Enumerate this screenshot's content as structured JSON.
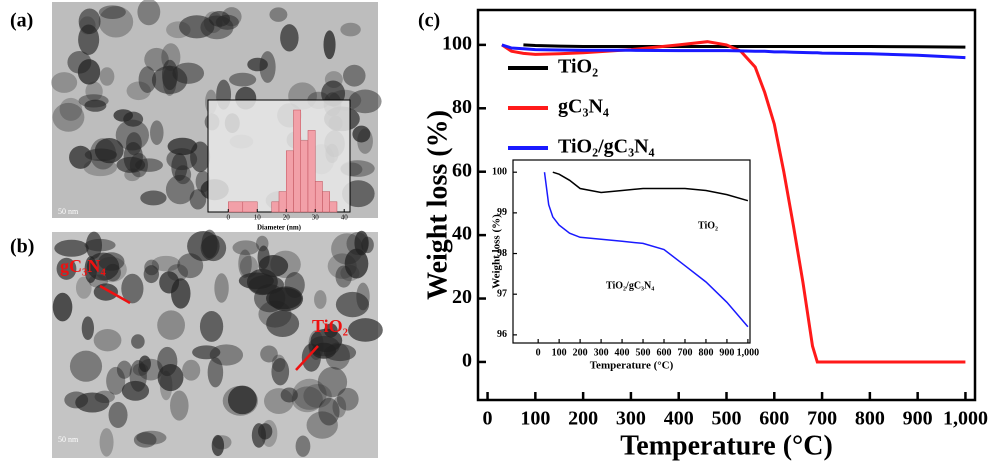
{
  "panels": {
    "a": {
      "label": "(a)",
      "scale_bar": "50 nm"
    },
    "b": {
      "label": "(b)",
      "annotations": [
        "gC₃N₄",
        "TiO₂"
      ],
      "scale_bar": "50 nm"
    },
    "c": {
      "label": "(c)"
    }
  },
  "chart_data": [
    {
      "type": "line",
      "xlabel": "Temperature (°C)",
      "ylabel": "Weight loss (%)",
      "xlim": [
        -20,
        1020
      ],
      "ylim": [
        -12,
        111
      ],
      "xticks": [
        0,
        100,
        200,
        300,
        400,
        500,
        600,
        700,
        800,
        900,
        {
          "value": 1000,
          "label": "1,000"
        }
      ],
      "yticks": [
        0,
        20,
        40,
        60,
        80,
        100
      ],
      "x": [
        30,
        50,
        75,
        100,
        150,
        200,
        300,
        400,
        460,
        500,
        530,
        560,
        580,
        600,
        620,
        640,
        660,
        680,
        690,
        700,
        800,
        900,
        1000
      ],
      "series": [
        {
          "name": "TiO₂",
          "color": "#000000",
          "values": [
            null,
            null,
            100,
            99.8,
            99.6,
            99.5,
            99.5,
            99.5,
            99.5,
            99.5,
            99.5,
            99.5,
            99.5,
            99.5,
            99.5,
            99.5,
            99.5,
            99.5,
            99.5,
            99.5,
            99.5,
            99.4,
            99.3
          ]
        },
        {
          "name": "gC₃N₄",
          "color": "#ff1a1a",
          "values": [
            100,
            98,
            97.3,
            97,
            97.2,
            97.5,
            98.5,
            100,
            101,
            100,
            98,
            93,
            85,
            75,
            60,
            43,
            25,
            5,
            0,
            0,
            0,
            0,
            0
          ]
        },
        {
          "name": "TiO₂/gC₃N₄",
          "color": "#1a1aff",
          "values": [
            100,
            99,
            98.8,
            98.5,
            98.4,
            98.3,
            98.3,
            98.2,
            98.2,
            98.2,
            98.1,
            98,
            98,
            97.8,
            97.8,
            97.7,
            97.6,
            97.5,
            97.5,
            97.4,
            97.2,
            96.7,
            96
          ]
        }
      ]
    },
    {
      "type": "line",
      "xlabel": "Temperature (°C)",
      "ylabel": "Weight loss (%)",
      "xlim": [
        -120,
        1010
      ],
      "ylim": [
        95.8,
        100.3
      ],
      "xticks": [
        0,
        100,
        200,
        300,
        400,
        500,
        600,
        700,
        800,
        900,
        {
          "value": 1000,
          "label": "1,000"
        }
      ],
      "yticks": [
        96,
        97,
        98,
        99,
        100
      ],
      "x": [
        30,
        50,
        70,
        100,
        150,
        200,
        300,
        400,
        500,
        600,
        700,
        800,
        900,
        1000
      ],
      "annotations": [
        "TiO₂",
        "TiO₂/gC₃N₄"
      ],
      "series": [
        {
          "color": "#000000",
          "values": [
            null,
            null,
            100,
            99.95,
            99.8,
            99.6,
            99.5,
            99.55,
            99.6,
            99.6,
            99.6,
            99.55,
            99.45,
            99.3
          ]
        },
        {
          "color": "#1a1aff",
          "values": [
            100,
            99.2,
            98.9,
            98.7,
            98.5,
            98.4,
            98.35,
            98.3,
            98.25,
            98.1,
            97.7,
            97.3,
            96.8,
            96.2
          ]
        }
      ]
    },
    {
      "type": "histogram",
      "xlabel": "Diameter (nm)",
      "color": "#f2a0a8",
      "xlim": [
        -7,
        42
      ],
      "xticks": [
        0,
        10,
        20,
        30,
        40
      ],
      "bins": [
        0,
        5,
        10,
        15,
        17.5,
        20,
        22.5,
        25,
        27.5,
        30,
        32.5,
        35,
        37.5,
        40
      ],
      "counts": [
        1,
        1,
        0,
        1,
        2,
        6,
        10,
        7,
        8,
        3,
        2,
        1,
        0
      ]
    }
  ]
}
